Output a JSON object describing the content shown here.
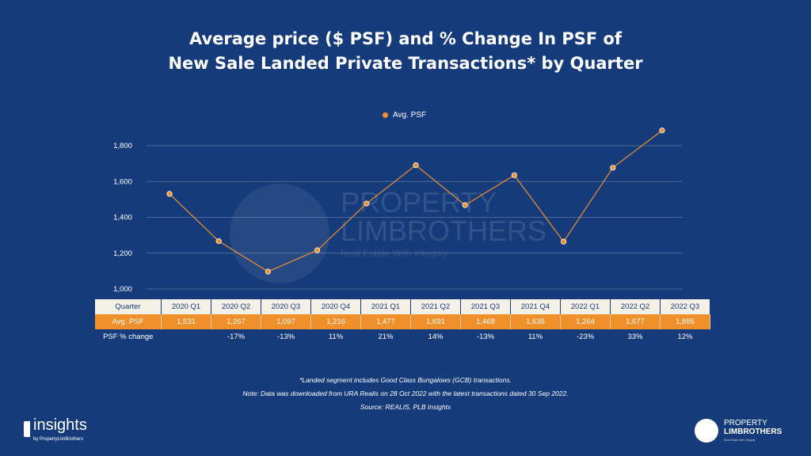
{
  "chart_data": {
    "type": "line",
    "title": "Average price ($ PSF) and % Change In PSF of New Sale Landed Private Transactions* by Quarter",
    "categories": [
      "2020 Q1",
      "2020 Q2",
      "2020 Q3",
      "2020 Q4",
      "2021 Q1",
      "2021 Q2",
      "2021 Q3",
      "2021 Q4",
      "2022 Q1",
      "2022 Q2",
      "2022 Q3"
    ],
    "series": [
      {
        "name": "Avg. PSF",
        "values": [
          1531,
          1267,
          1097,
          1216,
          1477,
          1691,
          1468,
          1635,
          1264,
          1677,
          1885
        ],
        "color": "#f0902b"
      }
    ],
    "pct_change": [
      "",
      "-17%",
      "-13%",
      "11%",
      "21%",
      "14%",
      "-13%",
      "11%",
      "-23%",
      "33%",
      "12%"
    ],
    "yticks": [
      "1,000",
      "1,200",
      "1,400",
      "1,600",
      "1,800"
    ],
    "ylim": [
      1000,
      1800
    ],
    "grid": true,
    "legend": "top-center"
  },
  "table": {
    "row_labels": {
      "quarter": "Quarter",
      "avg": "Avg. PSF",
      "change": "PSF % change"
    },
    "avg_display": [
      "1,531",
      "1,267",
      "1,097",
      "1,216",
      "1,477",
      "1,691",
      "1,468",
      "1,635",
      "1,264",
      "1,677",
      "1,885"
    ]
  },
  "notes": [
    "*Landed segment includes Good Class Bungalows (GCB) transactions.",
    "Note: Data was downloaded from URA Realis on 28 Oct 2022 with the latest transactions dated 30 Sep 2022.",
    "Source: REALIS, PLB Insights"
  ],
  "watermark": {
    "line1": "PROPERTY",
    "line2": "LIMBROTHERS",
    "tagline": "Real Estate With Integrity"
  },
  "logo_left": {
    "word": "insights",
    "sub": "by PropertyLimBrothers"
  },
  "logo_right": {
    "line1": "PROPERTY",
    "line2": "LIMBROTHERS",
    "tagline": "Real Estate With Integrity"
  },
  "colors": {
    "background": "#163b7a",
    "accent": "#f0902b",
    "table_header": "#f6f1e7"
  }
}
